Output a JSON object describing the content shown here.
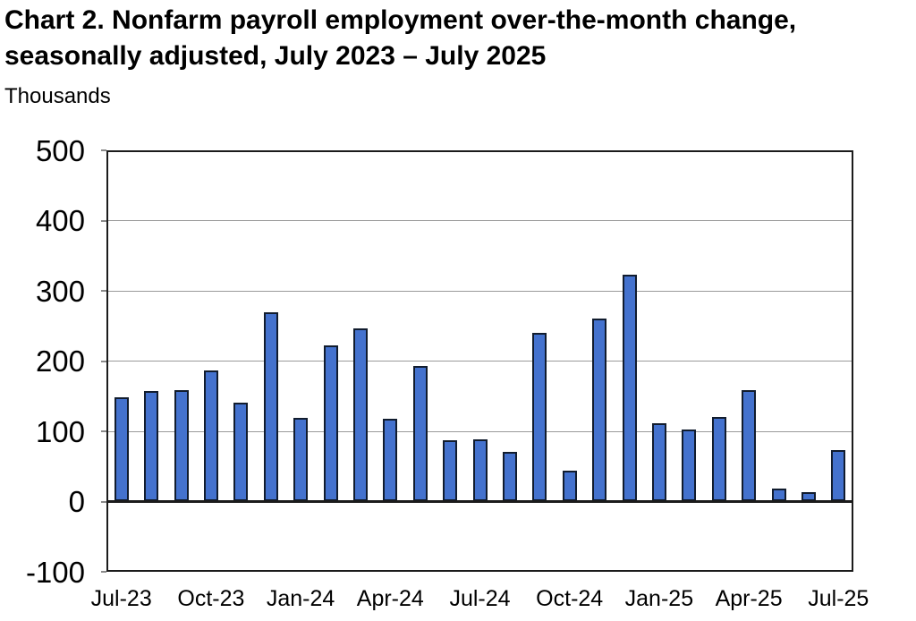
{
  "header": {
    "title_line1": "Chart 2. Nonfarm payroll employment over-the-month change,",
    "title_line2": "seasonally adjusted, July 2023 – July 2025",
    "units_label": "Thousands"
  },
  "chart_data": {
    "type": "bar",
    "title": "Chart 2. Nonfarm payroll employment over-the-month change, seasonally adjusted, July 2023 – July 2025",
    "ylabel": "Thousands",
    "xlabel": "",
    "categories": [
      "Jul-23",
      "Aug-23",
      "Sep-23",
      "Oct-23",
      "Nov-23",
      "Dec-23",
      "Jan-24",
      "Feb-24",
      "Mar-24",
      "Apr-24",
      "May-24",
      "Jun-24",
      "Jul-24",
      "Aug-24",
      "Sep-24",
      "Oct-24",
      "Nov-24",
      "Dec-24",
      "Jan-25",
      "Feb-25",
      "Mar-25",
      "Apr-25",
      "May-25",
      "Jun-25",
      "Jul-25"
    ],
    "values": [
      148,
      157,
      158,
      186,
      141,
      269,
      119,
      222,
      246,
      118,
      193,
      87,
      88,
      71,
      240,
      44,
      261,
      323,
      111,
      102,
      120,
      158,
      19,
      14,
      73
    ],
    "ylim": [
      -100,
      500
    ],
    "yticks": [
      500,
      400,
      300,
      200,
      100,
      0,
      -100
    ],
    "xtick_labels": [
      "Jul-23",
      "Oct-23",
      "Jan-24",
      "Apr-24",
      "Jul-24",
      "Oct-24",
      "Jan-25",
      "Apr-25",
      "Jul-25"
    ],
    "xtick_every": 3,
    "grid": true,
    "legend_position": "none",
    "colors": {
      "bar_fill": "#4472CE",
      "bar_border": "#111C2E",
      "gridline": "#9A9A9A",
      "axis": "#1B1B1B",
      "text": "#000000"
    }
  }
}
